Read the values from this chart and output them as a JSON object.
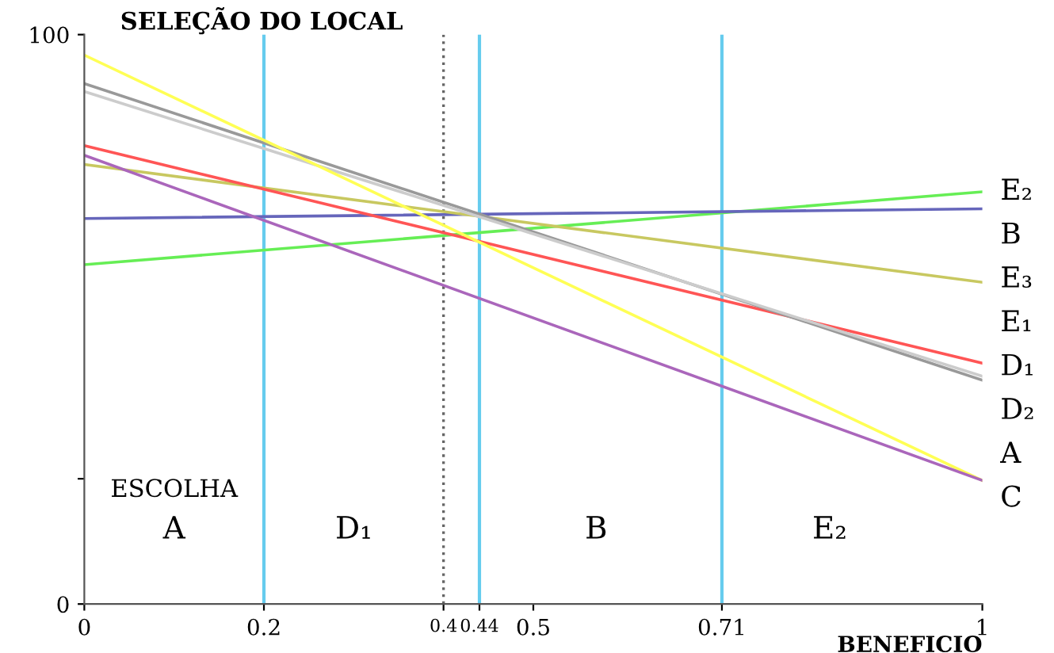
{
  "chart_data": {
    "type": "line",
    "title": "SELEÇÃO DO LOCAL",
    "xlabel": "BENEFICIO",
    "x": [
      0,
      1
    ],
    "xlim": [
      0,
      1
    ],
    "ylim": [
      0,
      100
    ],
    "xticks": [
      0,
      0.2,
      0.4,
      0.44,
      0.5,
      0.71,
      1
    ],
    "yticks": [
      0,
      {
        "value": 22,
        "label": null
      },
      100
    ],
    "grid": false,
    "legend": false,
    "marker": "none",
    "line_style": "solid",
    "series": [
      {
        "name": "E₂",
        "color": "#66ee55",
        "values": [
          59.6,
          72.4
        ]
      },
      {
        "name": "B",
        "color": "#6666bb",
        "values": [
          67.7,
          69.4
        ]
      },
      {
        "name": "E₃",
        "color": "#c8c860",
        "values": [
          77.2,
          56.5
        ]
      },
      {
        "name": "E₁",
        "color": "#ff5555",
        "values": [
          80.5,
          42.3
        ]
      },
      {
        "name": "D₁",
        "color": "#999999",
        "values": [
          91.4,
          39.3
        ]
      },
      {
        "name": "D₂",
        "color": "#cccccc",
        "values": [
          90,
          40
        ]
      },
      {
        "name": "A",
        "color": "#ffff55",
        "values": [
          96.4,
          21.7
        ]
      },
      {
        "name": "C",
        "color": "#aa66bb",
        "values": [
          78.8,
          21.7
        ]
      }
    ],
    "ref_lines": [
      {
        "axis": "x",
        "value": 0.2,
        "color": "#66ccee",
        "line_style": "solid"
      },
      {
        "axis": "x",
        "value": 0.4,
        "color": "#666666",
        "line_style": "dotted"
      },
      {
        "axis": "x",
        "value": 0.44,
        "color": "#66ccee",
        "line_style": "solid"
      },
      {
        "axis": "x",
        "value": 0.71,
        "color": "#66ccee",
        "line_style": "solid"
      }
    ],
    "annotations": [
      "ESCOLHA",
      "A",
      "D₁",
      "B",
      "E₂"
    ]
  }
}
